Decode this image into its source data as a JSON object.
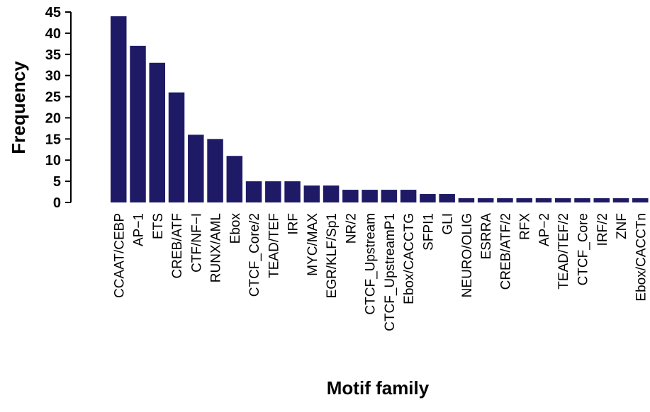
{
  "chart_data": {
    "type": "bar",
    "title": "",
    "xlabel": "Motif family",
    "ylabel": "Frequency",
    "ylim": [
      0,
      45
    ],
    "yticks": [
      "0",
      "5",
      "10",
      "15",
      "20",
      "25",
      "30",
      "35",
      "40",
      "45"
    ],
    "grid": false,
    "legend": "none",
    "bar_color": "#1f1a66",
    "categories": [
      "CCAAT/CEBP",
      "AP−1",
      "ETS",
      "CREB/ATF",
      "CTF/NF−I",
      "RUNX/AML",
      "Ebox",
      "CTCF_Core/2",
      "TEAD/TEF",
      "IRF",
      "MYC/MAX",
      "EGR/KLF/Sp1",
      "NR/2",
      "CTCF_Upstream",
      "CTCF_UpstreamP1",
      "Ebox/CACCTG",
      "SFPI1",
      "GLI",
      "NEURO/OLIG",
      "ESRRA",
      "CREB/ATF/2",
      "RFX",
      "AP−2",
      "TEAD/TEF/2",
      "CTCF_Core",
      "IRF/2",
      "ZNF",
      "Ebox/CACCTn"
    ],
    "values": [
      44,
      37,
      33,
      26,
      16,
      15,
      11,
      5,
      5,
      5,
      4,
      4,
      3,
      3,
      3,
      3,
      2,
      2,
      1,
      1,
      1,
      1,
      1,
      1,
      1,
      1,
      1,
      1
    ]
  }
}
